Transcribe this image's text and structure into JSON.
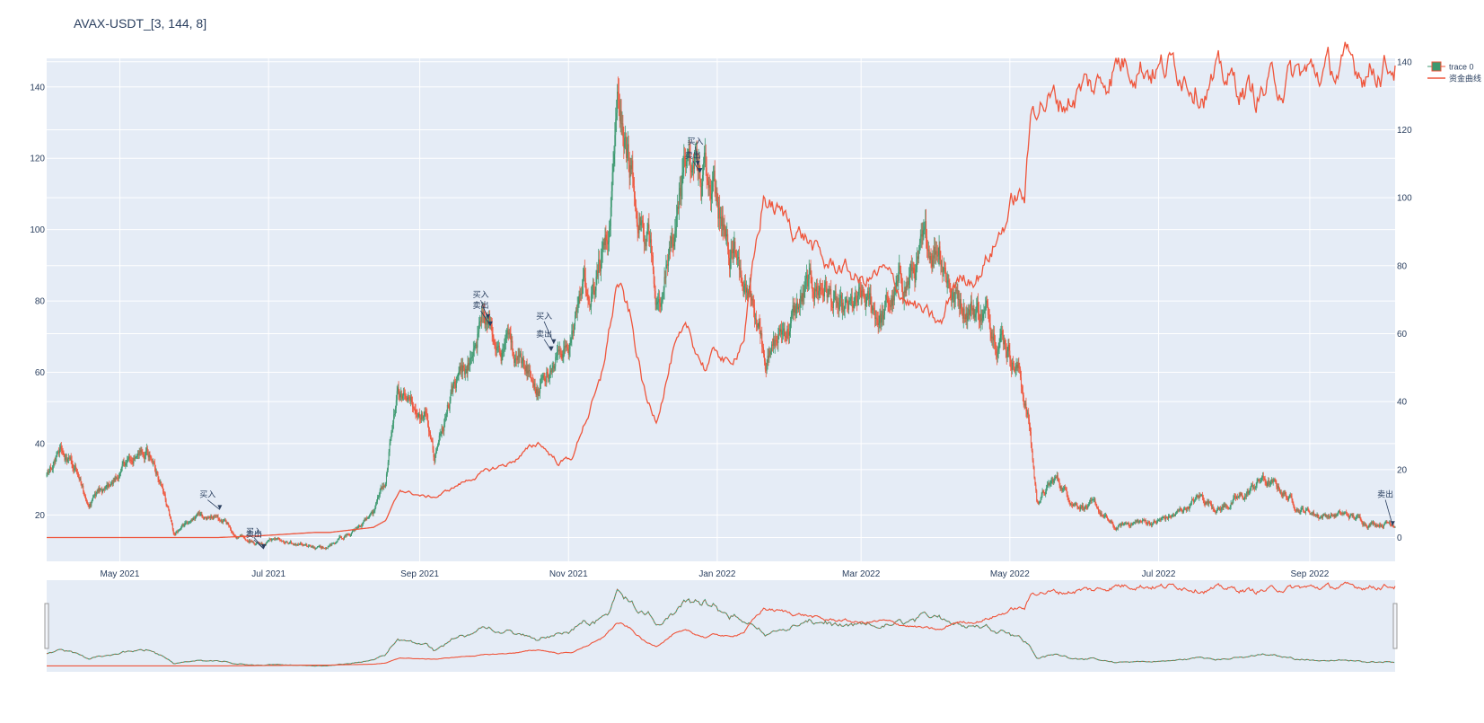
{
  "chart_data": {
    "type": "candlestick+line",
    "title": "AVAX-USDT_[3, 144, 8]",
    "x_range": [
      "2021-04-01",
      "2022-10-06"
    ],
    "x_ticks": [
      {
        "date": "2021-05-01",
        "label": "May 2021"
      },
      {
        "date": "2021-07-01",
        "label": "Jul 2021"
      },
      {
        "date": "2021-09-01",
        "label": "Sep 2021"
      },
      {
        "date": "2021-11-01",
        "label": "Nov 2021"
      },
      {
        "date": "2022-01-01",
        "label": "Jan 2022"
      },
      {
        "date": "2022-03-01",
        "label": "Mar 2022"
      },
      {
        "date": "2022-05-01",
        "label": "May 2022"
      },
      {
        "date": "2022-07-01",
        "label": "Jul 2022"
      },
      {
        "date": "2022-09-01",
        "label": "Sep 2022"
      }
    ],
    "y_left": {
      "range": [
        7,
        148
      ],
      "ticks": [
        20,
        40,
        60,
        80,
        100,
        120,
        140
      ]
    },
    "y_right": {
      "range": [
        -7,
        141
      ],
      "ticks": [
        0,
        20,
        40,
        60,
        80,
        100,
        120,
        140
      ]
    },
    "legend": {
      "placement": "top-right",
      "entries": [
        "trace 0",
        "资金曲线"
      ]
    },
    "colors": {
      "increasing": "#3d9970",
      "decreasing": "#ef553b",
      "equity": "#ef553b",
      "plot_bg": "#e5ecf6",
      "grid": "#ffffff",
      "text": "#2a3f5f"
    },
    "price_anchors": [
      [
        "2021-04-01",
        32
      ],
      [
        "2021-04-08",
        38
      ],
      [
        "2021-04-13",
        33
      ],
      [
        "2021-04-18",
        22
      ],
      [
        "2021-04-26",
        28
      ],
      [
        "2021-05-03",
        33
      ],
      [
        "2021-05-08",
        38
      ],
      [
        "2021-05-14",
        37
      ],
      [
        "2021-05-19",
        26
      ],
      [
        "2021-05-23",
        15
      ],
      [
        "2021-05-30",
        18
      ],
      [
        "2021-06-08",
        20
      ],
      [
        "2021-06-18",
        15
      ],
      [
        "2021-06-27",
        12
      ],
      [
        "2021-07-05",
        13
      ],
      [
        "2021-07-12",
        12
      ],
      [
        "2021-07-20",
        10
      ],
      [
        "2021-07-27",
        12
      ],
      [
        "2021-08-05",
        16
      ],
      [
        "2021-08-13",
        20
      ],
      [
        "2021-08-18",
        30
      ],
      [
        "2021-08-23",
        55
      ],
      [
        "2021-08-28",
        47
      ],
      [
        "2021-09-04",
        50
      ],
      [
        "2021-09-07",
        35
      ],
      [
        "2021-09-14",
        53
      ],
      [
        "2021-09-20",
        60
      ],
      [
        "2021-09-26",
        78
      ],
      [
        "2021-10-03",
        68
      ],
      [
        "2021-10-12",
        63
      ],
      [
        "2021-10-20",
        55
      ],
      [
        "2021-10-26",
        65
      ],
      [
        "2021-11-01",
        66
      ],
      [
        "2021-11-07",
        85
      ],
      [
        "2021-11-13",
        90
      ],
      [
        "2021-11-18",
        100
      ],
      [
        "2021-11-21",
        146
      ],
      [
        "2021-11-26",
        118
      ],
      [
        "2021-12-03",
        102
      ],
      [
        "2021-12-07",
        80
      ],
      [
        "2021-12-14",
        95
      ],
      [
        "2021-12-20",
        120
      ],
      [
        "2021-12-24",
        118
      ],
      [
        "2021-12-30",
        110
      ],
      [
        "2022-01-06",
        95
      ],
      [
        "2022-01-13",
        88
      ],
      [
        "2022-01-21",
        62
      ],
      [
        "2022-01-27",
        70
      ],
      [
        "2022-02-07",
        82
      ],
      [
        "2022-02-14",
        85
      ],
      [
        "2022-02-21",
        74
      ],
      [
        "2022-03-01",
        78
      ],
      [
        "2022-03-10",
        76
      ],
      [
        "2022-03-20",
        86
      ],
      [
        "2022-03-28",
        93
      ],
      [
        "2022-04-02",
        98
      ],
      [
        "2022-04-08",
        82
      ],
      [
        "2022-04-18",
        78
      ],
      [
        "2022-04-28",
        72
      ],
      [
        "2022-05-05",
        60
      ],
      [
        "2022-05-09",
        45
      ],
      [
        "2022-05-12",
        24
      ],
      [
        "2022-05-20",
        30
      ],
      [
        "2022-05-27",
        24
      ],
      [
        "2022-06-05",
        22
      ],
      [
        "2022-06-13",
        16
      ],
      [
        "2022-06-20",
        18
      ],
      [
        "2022-06-30",
        18
      ],
      [
        "2022-07-08",
        20
      ],
      [
        "2022-07-18",
        25
      ],
      [
        "2022-07-26",
        22
      ],
      [
        "2022-08-05",
        25
      ],
      [
        "2022-08-12",
        30
      ],
      [
        "2022-08-20",
        27
      ],
      [
        "2022-08-28",
        22
      ],
      [
        "2022-09-05",
        20
      ],
      [
        "2022-09-15",
        20
      ],
      [
        "2022-09-25",
        18
      ],
      [
        "2022-10-06",
        18
      ]
    ],
    "equity_anchors": [
      [
        "2021-04-01",
        0
      ],
      [
        "2021-06-10",
        0
      ],
      [
        "2021-06-27",
        0.5
      ],
      [
        "2021-07-20",
        1.5
      ],
      [
        "2021-07-26",
        1.5
      ],
      [
        "2021-08-13",
        3
      ],
      [
        "2021-08-18",
        5
      ],
      [
        "2021-08-24",
        14
      ],
      [
        "2021-09-03",
        12
      ],
      [
        "2021-09-08",
        12
      ],
      [
        "2021-09-18",
        16
      ],
      [
        "2021-09-27",
        19
      ],
      [
        "2021-10-08",
        22
      ],
      [
        "2021-10-20",
        28
      ],
      [
        "2021-10-28",
        22
      ],
      [
        "2021-11-03",
        24
      ],
      [
        "2021-11-07",
        33
      ],
      [
        "2021-11-14",
        45
      ],
      [
        "2021-11-21",
        75
      ],
      [
        "2021-11-26",
        65
      ],
      [
        "2021-12-03",
        40
      ],
      [
        "2021-12-07",
        35
      ],
      [
        "2021-12-14",
        55
      ],
      [
        "2021-12-20",
        60
      ],
      [
        "2021-12-27",
        50
      ],
      [
        "2022-01-01",
        55
      ],
      [
        "2022-01-06",
        50
      ],
      [
        "2022-01-12",
        60
      ],
      [
        "2022-01-20",
        100
      ],
      [
        "2022-01-27",
        95
      ],
      [
        "2022-02-07",
        88
      ],
      [
        "2022-02-14",
        80
      ],
      [
        "2022-02-21",
        80
      ],
      [
        "2022-03-01",
        75
      ],
      [
        "2022-03-10",
        78
      ],
      [
        "2022-03-20",
        70
      ],
      [
        "2022-03-28",
        65
      ],
      [
        "2022-04-03",
        62
      ],
      [
        "2022-04-08",
        75
      ],
      [
        "2022-04-18",
        78
      ],
      [
        "2022-04-26",
        88
      ],
      [
        "2022-05-03",
        100
      ],
      [
        "2022-05-07",
        100
      ],
      [
        "2022-05-10",
        125
      ],
      [
        "2022-05-13",
        130
      ],
      [
        "2022-05-22",
        128
      ],
      [
        "2022-06-01",
        133
      ],
      [
        "2022-06-05",
        132
      ],
      [
        "2022-06-14",
        140
      ],
      [
        "2022-06-22",
        141
      ],
      [
        "2022-07-01",
        138
      ],
      [
        "2022-07-10",
        139
      ],
      [
        "2022-07-20",
        133
      ],
      [
        "2022-07-28",
        135
      ],
      [
        "2022-08-10",
        130
      ],
      [
        "2022-08-18",
        134
      ],
      [
        "2022-08-28",
        136
      ],
      [
        "2022-09-08",
        137
      ],
      [
        "2022-09-20",
        138
      ],
      [
        "2022-10-06",
        140
      ]
    ],
    "annotations": [
      {
        "text": "买入",
        "date": "2021-06-11",
        "y": 21.5,
        "ax": "2021-06-06",
        "ay": 25
      },
      {
        "text": "买入",
        "date": "2021-06-29",
        "y": 10.5,
        "ax": "2021-06-25",
        "ay": 14.5
      },
      {
        "text": "卖出",
        "date": "2021-06-29",
        "y": 10.5,
        "ax": "2021-06-25",
        "ay": 13.8
      },
      {
        "text": "买入",
        "date": "2021-09-29",
        "y": 75,
        "ax": "2021-09-26",
        "ay": 81
      },
      {
        "text": "卖出",
        "date": "2021-09-30",
        "y": 73,
        "ax": "2021-09-26",
        "ay": 78
      },
      {
        "text": "买入",
        "date": "2021-10-26",
        "y": 68,
        "ax": "2021-10-22",
        "ay": 75
      },
      {
        "text": "卖出",
        "date": "2021-10-25",
        "y": 66,
        "ax": "2021-10-22",
        "ay": 70
      },
      {
        "text": "买入",
        "date": "2021-12-24",
        "y": 118,
        "ax": "2021-12-23",
        "ay": 124
      },
      {
        "text": "卖出",
        "date": "2021-12-25",
        "y": 116,
        "ax": "2021-12-22",
        "ay": 120
      },
      {
        "text": "卖出",
        "date": "2022-10-05",
        "y": 17,
        "ax": "2022-10-02",
        "ay": 25
      }
    ]
  }
}
